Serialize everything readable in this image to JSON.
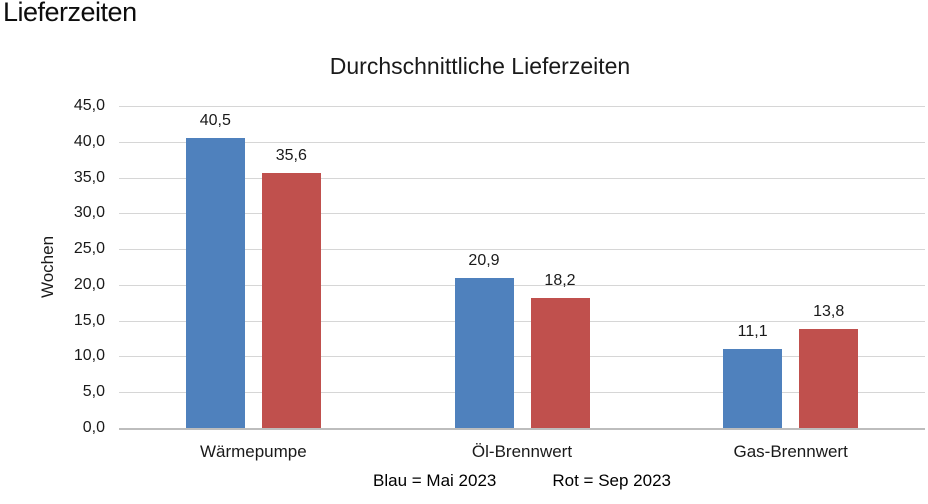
{
  "page": {
    "title": "Lieferzeiten"
  },
  "chart_data": {
    "type": "bar",
    "title": "Durchschnittliche Lieferzeiten",
    "categories": [
      "Wärmepumpe",
      "Öl-Brennwert",
      "Gas-Brennwert"
    ],
    "series": [
      {
        "name": "Mai 2023",
        "legend_color_word": "Blau",
        "color": "#4F81BD",
        "values": [
          40.5,
          20.9,
          11.1
        ],
        "value_labels": [
          "40,5",
          "20,9",
          "11,1"
        ]
      },
      {
        "name": "Sep 2023",
        "legend_color_word": "Rot",
        "color": "#C0504D",
        "values": [
          35.6,
          18.2,
          13.8
        ],
        "value_labels": [
          "35,6",
          "18,2",
          "13,8"
        ]
      }
    ],
    "xlabel": "",
    "ylabel": "Wochen",
    "ylim": [
      0,
      45
    ],
    "ytick_step": 5,
    "ytick_labels": [
      "0,0",
      "5,0",
      "10,0",
      "15,0",
      "20,0",
      "25,0",
      "30,0",
      "35,0",
      "40,0",
      "45,0"
    ],
    "grid": true,
    "legend_position": "bottom",
    "legend_notes": [
      "Blau = Mai 2023",
      "Rot = Sep 2023"
    ],
    "colors": {
      "gridline": "#D6D6D6",
      "axis_line": "#BDBDBD",
      "text": "#1A1A1A",
      "background": "#FFFFFF"
    }
  }
}
